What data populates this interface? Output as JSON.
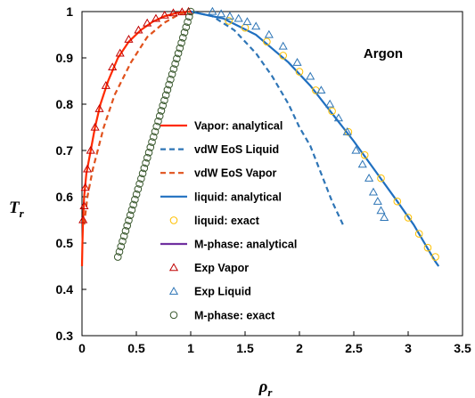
{
  "chart_data": {
    "type": "scatter",
    "annotation": "Argon",
    "xlabel": "ρ",
    "xlabel_sub": "r",
    "ylabel": "T",
    "ylabel_sub": "r",
    "xlim": [
      0,
      3.5
    ],
    "ylim": [
      0.3,
      1
    ],
    "xticks": [
      "0",
      "0.5",
      "1",
      "1.5",
      "2",
      "2.5",
      "3",
      "3.5"
    ],
    "yticks": [
      "0.3",
      "0.4",
      "0.5",
      "0.6",
      "0.7",
      "0.8",
      "0.9",
      "1"
    ],
    "grid": false,
    "legend_position": "center",
    "series": [
      {
        "name": "Vapor: analytical",
        "kind": "line",
        "dash": "solid",
        "color": "#ff2a00",
        "x": [
          0.0,
          0.004,
          0.01,
          0.02,
          0.04,
          0.08,
          0.12,
          0.17,
          0.24,
          0.33,
          0.43,
          0.54,
          0.65,
          0.76,
          0.87,
          0.95,
          1.0
        ],
        "y": [
          0.45,
          0.5,
          0.55,
          0.6,
          0.65,
          0.7,
          0.75,
          0.8,
          0.85,
          0.9,
          0.935,
          0.96,
          0.978,
          0.99,
          0.997,
          0.9995,
          1.0
        ]
      },
      {
        "name": "vdW EoS Liquid",
        "kind": "line",
        "dash": "dashed",
        "color": "#2e75b6",
        "x": [
          1.0,
          1.2,
          1.4,
          1.6,
          1.75,
          1.9,
          2.0,
          2.1,
          2.2,
          2.3,
          2.4
        ],
        "y": [
          1.0,
          0.99,
          0.96,
          0.91,
          0.86,
          0.8,
          0.75,
          0.71,
          0.65,
          0.59,
          0.54
        ]
      },
      {
        "name": "vdW EoS Vapor",
        "kind": "line",
        "dash": "dashed",
        "color": "#e0521d",
        "x": [
          0.02,
          0.05,
          0.1,
          0.2,
          0.3,
          0.45,
          0.6,
          0.75,
          0.9,
          1.0
        ],
        "y": [
          0.54,
          0.6,
          0.66,
          0.75,
          0.82,
          0.89,
          0.945,
          0.975,
          0.995,
          1.0
        ]
      },
      {
        "name": "liquid: analytical",
        "kind": "line",
        "dash": "solid",
        "color": "#1f6fc0",
        "x": [
          1.0,
          1.3,
          1.6,
          1.9,
          2.1,
          2.3,
          2.5,
          2.7,
          2.9,
          3.05,
          3.15,
          3.25,
          3.28
        ],
        "y": [
          1.0,
          0.985,
          0.95,
          0.89,
          0.84,
          0.78,
          0.72,
          0.655,
          0.59,
          0.54,
          0.5,
          0.46,
          0.45
        ]
      },
      {
        "name": "liquid: exact",
        "kind": "markers",
        "marker": "circle",
        "color": "#ffc000",
        "x": [
          1.35,
          1.5,
          1.7,
          1.85,
          2.0,
          2.15,
          2.3,
          2.45,
          2.6,
          2.75,
          2.9,
          3.0,
          3.1,
          3.18,
          3.25
        ],
        "y": [
          0.98,
          0.965,
          0.935,
          0.905,
          0.87,
          0.83,
          0.785,
          0.74,
          0.69,
          0.64,
          0.59,
          0.555,
          0.52,
          0.49,
          0.47
        ]
      },
      {
        "name": "M-phase: analytical",
        "kind": "line",
        "dash": "solid",
        "color": "#7030a0",
        "x": [],
        "y": []
      },
      {
        "name": "Exp Vapor",
        "kind": "markers",
        "marker": "triangle",
        "color": "#c00000",
        "x": [
          0.01,
          0.02,
          0.03,
          0.05,
          0.08,
          0.12,
          0.16,
          0.22,
          0.28,
          0.35,
          0.43,
          0.52,
          0.6,
          0.68,
          0.76,
          0.84,
          0.92,
          0.98
        ],
        "y": [
          0.55,
          0.58,
          0.62,
          0.66,
          0.7,
          0.75,
          0.79,
          0.84,
          0.88,
          0.91,
          0.94,
          0.96,
          0.975,
          0.985,
          0.992,
          0.997,
          0.999,
          1.0
        ]
      },
      {
        "name": "Exp Liquid",
        "kind": "markers",
        "marker": "triangle",
        "color": "#2e75b6",
        "x": [
          1.2,
          1.28,
          1.36,
          1.44,
          1.52,
          1.6,
          1.72,
          1.85,
          1.98,
          2.1,
          2.2,
          2.28,
          2.36,
          2.44,
          2.52,
          2.58,
          2.64,
          2.68,
          2.72,
          2.75,
          2.78
        ],
        "y": [
          1.0,
          0.995,
          0.99,
          0.985,
          0.978,
          0.968,
          0.95,
          0.925,
          0.89,
          0.86,
          0.83,
          0.8,
          0.77,
          0.74,
          0.7,
          0.67,
          0.64,
          0.61,
          0.59,
          0.57,
          0.555
        ]
      },
      {
        "name": "M-phase: exact",
        "kind": "markers",
        "marker": "circle",
        "color": "#38572c",
        "x": [
          0.33,
          1.0
        ],
        "y": [
          0.47,
          1.0
        ],
        "count": 48
      }
    ]
  }
}
